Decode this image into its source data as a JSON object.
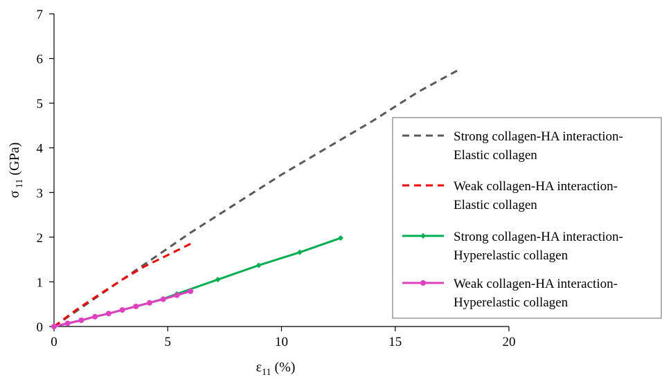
{
  "chart_data": {
    "type": "line",
    "xlabel": "ε",
    "xlabel_sub": "11",
    "xlabel_unit": " (%)",
    "ylabel": "σ",
    "ylabel_sub": "11",
    "ylabel_unit": " (GPa)",
    "xlim": [
      0,
      20
    ],
    "ylim": [
      0,
      7
    ],
    "xticks": [
      0,
      5,
      10,
      15,
      20
    ],
    "yticks": [
      0,
      1,
      2,
      3,
      4,
      5,
      6,
      7
    ],
    "grid": false,
    "legend_position": "right",
    "series": [
      {
        "name_line1": "Strong collagen-HA interaction-",
        "name_line2": "Elastic collagen",
        "color": "#595959",
        "dash": "10,7",
        "marker": "none",
        "x": [
          0,
          2,
          4,
          6,
          8,
          10,
          12,
          14,
          16,
          17.8
        ],
        "y": [
          0,
          0.7,
          1.4,
          2.1,
          2.75,
          3.4,
          4.0,
          4.6,
          5.25,
          5.75
        ]
      },
      {
        "name_line1": "Weak collagen-HA interaction-",
        "name_line2": "Elastic collagen",
        "color": "#ff0000",
        "dash": "10,7",
        "marker": "none",
        "x": [
          0,
          1,
          2,
          3,
          4,
          5,
          6
        ],
        "y": [
          0,
          0.38,
          0.72,
          1.05,
          1.35,
          1.6,
          1.85
        ]
      },
      {
        "name_line1": "Strong collagen-HA interaction-",
        "name_line2": "Hyperelastic collagen",
        "color": "#00b050",
        "dash": "",
        "marker": "diamond",
        "x": [
          0,
          0.6,
          1.2,
          1.8,
          2.4,
          3.0,
          3.6,
          4.2,
          4.8,
          5.4,
          7.2,
          9.0,
          10.8,
          12.6
        ],
        "y": [
          0,
          0.07,
          0.14,
          0.22,
          0.29,
          0.37,
          0.45,
          0.53,
          0.62,
          0.73,
          1.05,
          1.37,
          1.66,
          1.98
        ]
      },
      {
        "name_line1": "Weak collagen-HA interaction-",
        "name_line2": "Hyperelastic collagen",
        "color": "#e040c0",
        "dash": "",
        "marker": "circle",
        "x": [
          0,
          0.6,
          1.2,
          1.8,
          2.4,
          3.0,
          3.6,
          4.2,
          4.8,
          5.4,
          6.0
        ],
        "y": [
          0,
          0.07,
          0.14,
          0.22,
          0.29,
          0.37,
          0.45,
          0.53,
          0.61,
          0.7,
          0.79
        ]
      }
    ]
  }
}
